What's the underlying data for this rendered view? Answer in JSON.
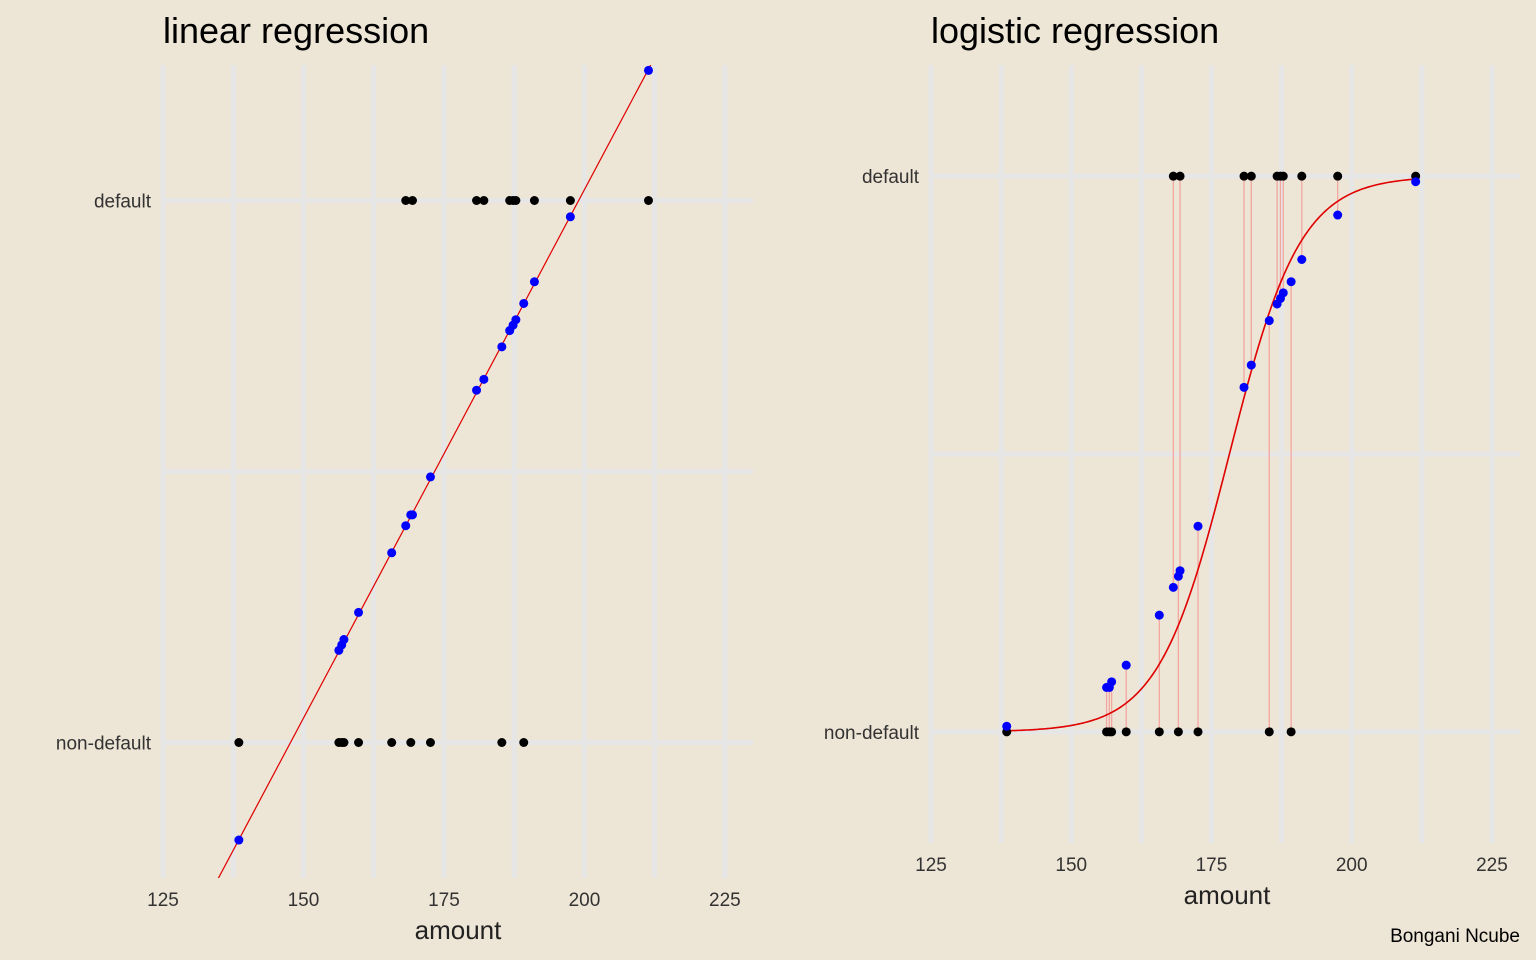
{
  "caption": "Bongani Ncube",
  "colors": {
    "background": "#ede5d5",
    "grid": "#e6e6e6",
    "fit_line": "#e00000",
    "observed_point": "#000000",
    "fitted_point": "#0000ff",
    "residual_segment": "#f4a6a0"
  },
  "chart_data": [
    {
      "type": "scatter",
      "title": "linear regression",
      "xlabel": "amount",
      "ylabel": "",
      "xlim": [
        125,
        230
      ],
      "ylim": [
        -0.25,
        1.25
      ],
      "x_ticks": [
        125,
        150,
        175,
        200,
        225
      ],
      "y_ticks": [
        0,
        1
      ],
      "y_tick_labels": [
        "non-default",
        "default"
      ],
      "grid": true,
      "fit": {
        "type": "linear",
        "intercept": -2.88,
        "slope": 0.0195
      },
      "observed_non_default": [
        138.5,
        156.3,
        156.8,
        157.2,
        159.8,
        165.7,
        169.1,
        172.6,
        185.3,
        189.2
      ],
      "observed_default": [
        168.2,
        169.4,
        180.8,
        182.1,
        186.7,
        187.3,
        187.8,
        191.1,
        197.5,
        211.4
      ],
      "fitted_x": [
        138.5,
        156.3,
        156.8,
        157.2,
        159.8,
        165.7,
        168.2,
        169.1,
        169.4,
        172.6,
        180.8,
        182.1,
        185.3,
        186.7,
        187.3,
        187.8,
        189.2,
        191.1,
        197.5,
        211.4
      ],
      "fitted_y": [
        -0.18,
        0.17,
        0.18,
        0.19,
        0.24,
        0.35,
        0.4,
        0.42,
        0.42,
        0.49,
        0.65,
        0.67,
        0.73,
        0.76,
        0.77,
        0.78,
        0.81,
        0.85,
        0.97,
        1.24
      ]
    },
    {
      "type": "scatter",
      "title": "logistic regression",
      "xlabel": "amount",
      "ylabel": "",
      "xlim": [
        125,
        230
      ],
      "ylim": [
        -0.2,
        1.2
      ],
      "x_ticks": [
        125,
        150,
        175,
        200,
        225
      ],
      "y_ticks": [
        0,
        1
      ],
      "y_tick_labels": [
        "non-default",
        "default"
      ],
      "grid": true,
      "fit": {
        "type": "logistic",
        "center": 178.2,
        "rate": 0.158
      },
      "observed_non_default": [
        138.5,
        156.3,
        156.8,
        157.2,
        159.8,
        165.7,
        169.1,
        172.6,
        185.3,
        189.2
      ],
      "observed_default": [
        168.2,
        169.4,
        180.8,
        182.1,
        186.7,
        187.3,
        187.8,
        191.1,
        197.5,
        211.4
      ],
      "fitted_x": [
        138.5,
        156.3,
        156.8,
        157.2,
        159.8,
        165.7,
        168.2,
        169.1,
        169.4,
        172.6,
        180.8,
        182.1,
        185.3,
        186.7,
        187.3,
        187.8,
        189.2,
        191.1,
        197.5,
        211.4
      ],
      "fitted_y": [
        0.01,
        0.08,
        0.08,
        0.09,
        0.12,
        0.21,
        0.26,
        0.28,
        0.29,
        0.37,
        0.62,
        0.66,
        0.74,
        0.77,
        0.78,
        0.79,
        0.81,
        0.85,
        0.93,
        0.99
      ]
    }
  ]
}
